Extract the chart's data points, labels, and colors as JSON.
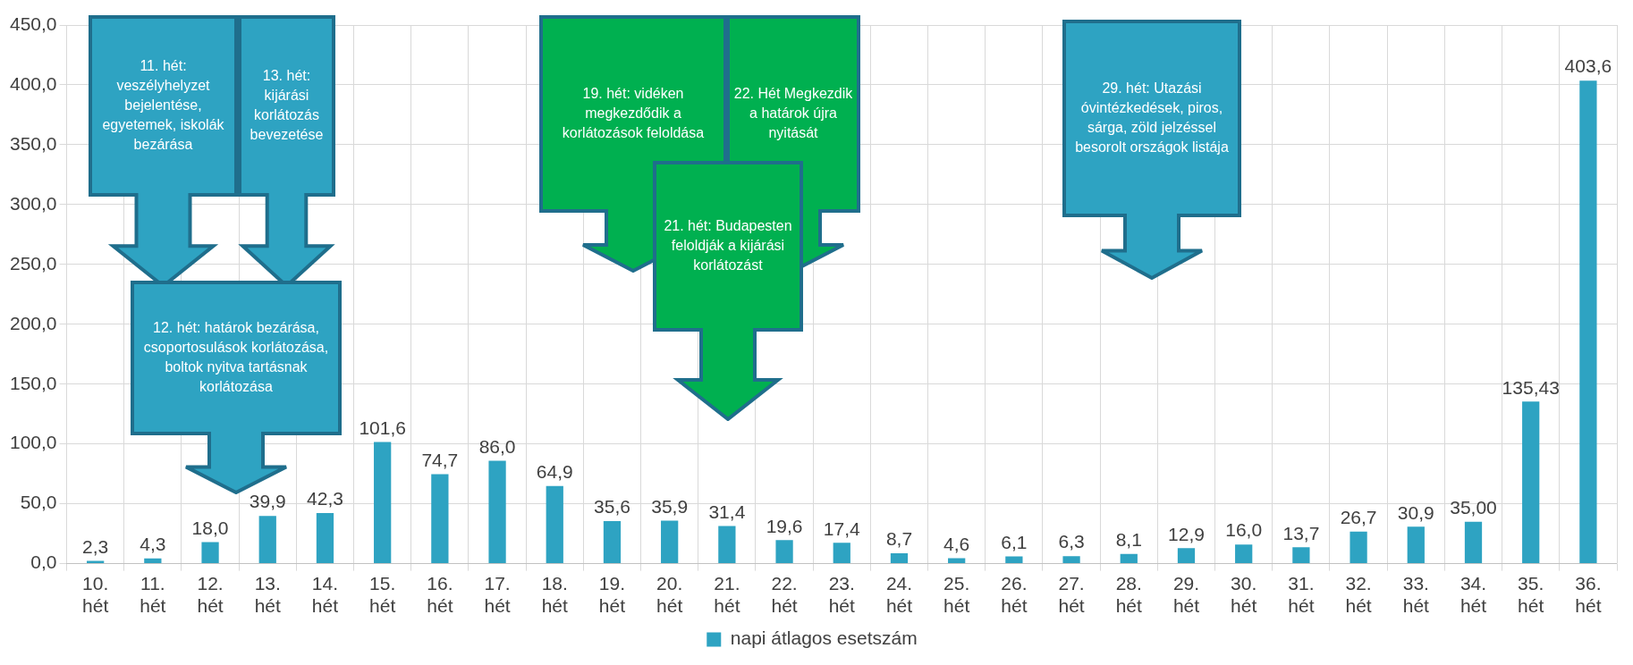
{
  "chart_data": {
    "type": "bar",
    "categories": [
      "10. hét",
      "11. hét",
      "12. hét",
      "13. hét",
      "14. hét",
      "15. hét",
      "16. hét",
      "17. hét",
      "18. hét",
      "19. hét",
      "20. hét",
      "21. hét",
      "22. hét",
      "23. hét",
      "24. hét",
      "25. hét",
      "26. hét",
      "27. hét",
      "28. hét",
      "29. hét",
      "30. hét",
      "31. hét",
      "32. hét",
      "33. hét",
      "34. hét",
      "35. hét",
      "36. hét"
    ],
    "series": [
      {
        "name": "napi átlagos esetszám",
        "color": "#2ea3c2",
        "values": [
          2.3,
          4.3,
          18.0,
          39.9,
          42.3,
          101.6,
          74.7,
          86.0,
          64.9,
          35.6,
          35.9,
          31.4,
          19.6,
          17.4,
          8.7,
          4.6,
          6.1,
          6.3,
          8.1,
          12.9,
          16.0,
          13.7,
          26.7,
          30.9,
          35.0,
          135.43,
          403.6
        ],
        "value_labels": [
          "2,3",
          "4,3",
          "18,0",
          "39,9",
          "42,3",
          "101,6",
          "74,7",
          "86,0",
          "64,9",
          "35,6",
          "35,9",
          "31,4",
          "19,6",
          "17,4",
          "8,7",
          "4,6",
          "6,1",
          "6,3",
          "8,1",
          "12,9",
          "16,0",
          "13,7",
          "26,7",
          "30,9",
          "35,00",
          "135,43",
          "403,6"
        ]
      }
    ],
    "ylim": [
      0,
      450
    ],
    "yticks": [
      {
        "value": 0,
        "label": "0,0"
      },
      {
        "value": 50,
        "label": "50,0"
      },
      {
        "value": 100,
        "label": "100,0"
      },
      {
        "value": 150,
        "label": "150,0"
      },
      {
        "value": 200,
        "label": "200,0"
      },
      {
        "value": 250,
        "label": "250,0"
      },
      {
        "value": 300,
        "label": "300,0"
      },
      {
        "value": 350,
        "label": "350,0"
      },
      {
        "value": 400,
        "label": "400,0"
      },
      {
        "value": 450,
        "label": "450,0"
      }
    ],
    "grid": true,
    "legend": "bottom",
    "annotations": [
      "11. hét: veszélyhelyzet bejelentése, egyetemek, iskolák bezárása",
      "13. hét: kijárási korlátozás bevezetése",
      "12. hét: határok bezárása, csoportosulások korlátozása, boltok nyitva tartásnak korlátozása",
      "19. hét: vidéken megkezdődik a korlátozások feloldása",
      "21. hét: Budapesten feloldják a kijárási korlátozást",
      "22. Hét Megkezdik a határok újra nyitását",
      "29. hét: Utazási óvintézkedések, piros, sárga, zöld jelzéssel besorolt országok listája"
    ]
  }
}
